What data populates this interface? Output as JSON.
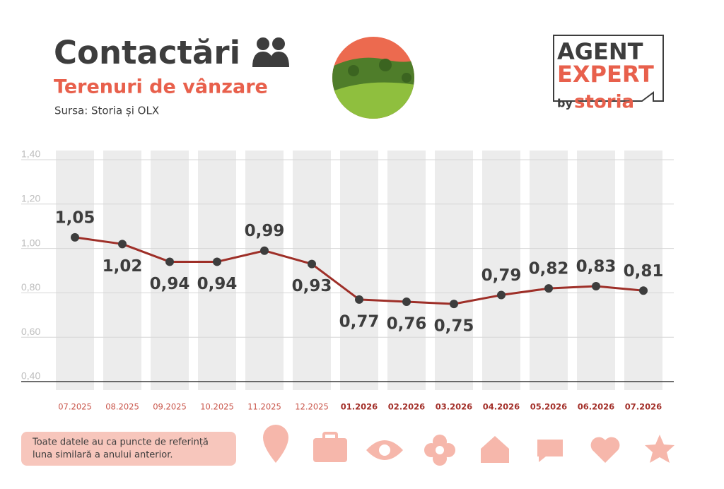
{
  "header": {
    "title": "Contactări",
    "subtitle": "Terenuri de vânzare",
    "source": "Sursa: Storia și OLX"
  },
  "logo": {
    "line1": "AGENT",
    "line2": "EXPERT",
    "by": "by",
    "brand": "storia"
  },
  "note": [
    "Toate datele au ca puncte de referință",
    "luna similară a anului anterior."
  ],
  "chart_data": {
    "type": "line",
    "categories": [
      "07.2025",
      "08.2025",
      "09.2025",
      "10.2025",
      "11.2025",
      "12.2025",
      "01.2026",
      "02.2026",
      "03.2026",
      "04.2026",
      "05.2026",
      "06.2026",
      "07.2026"
    ],
    "values": [
      1.05,
      1.02,
      0.94,
      0.94,
      0.99,
      0.93,
      0.77,
      0.76,
      0.75,
      0.79,
      0.82,
      0.83,
      0.81
    ],
    "value_labels": [
      "1,05",
      "1,02",
      "0,94",
      "0,94",
      "0,99",
      "0,93",
      "0,77",
      "0,76",
      "0,75",
      "0,79",
      "0,82",
      "0,83",
      "0,81"
    ],
    "color": "#9e2f28",
    "ylim": [
      0.4,
      1.4
    ],
    "yticks": [
      {
        "value": 0.4,
        "label": "0,40"
      },
      {
        "value": 0.6,
        "label": "0,60"
      },
      {
        "value": 0.8,
        "label": "0,80"
      },
      {
        "value": 1.0,
        "label": "1,00"
      },
      {
        "value": 1.2,
        "label": "1,20"
      },
      {
        "value": 1.4,
        "label": "1,40"
      }
    ],
    "grid": true
  }
}
